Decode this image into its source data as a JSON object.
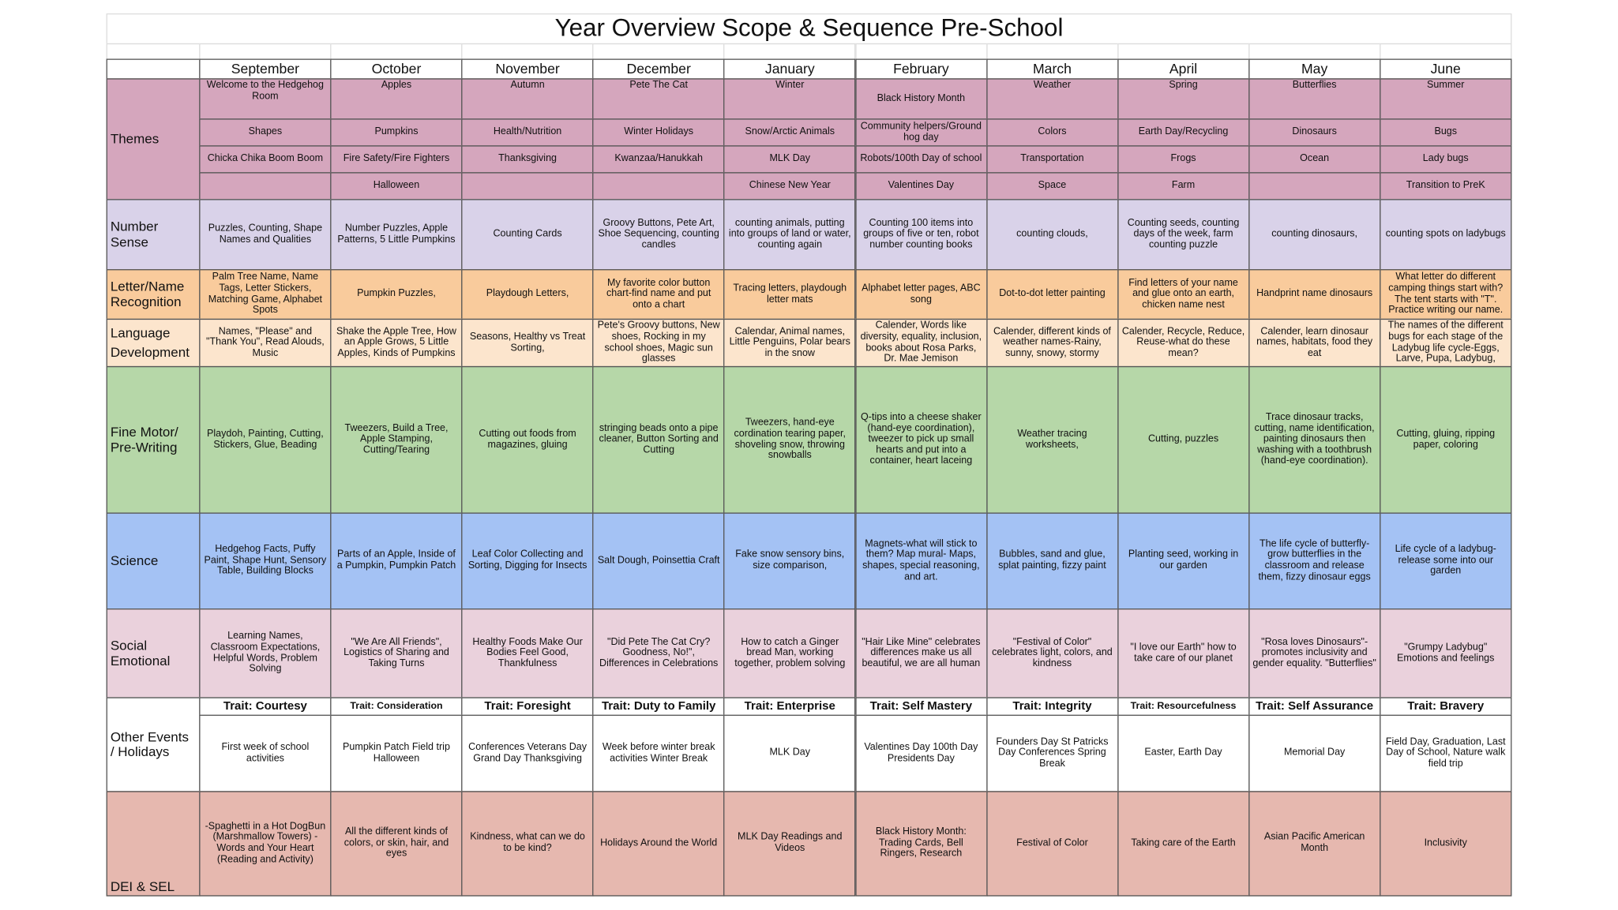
{
  "title": "Year Overview Scope & Sequence Pre-School",
  "months": [
    "September",
    "October",
    "November",
    "December",
    "January",
    "February",
    "March",
    "April",
    "May",
    "June"
  ],
  "themes": {
    "label": "Themes",
    "color": "#d5a6bd",
    "subrows": [
      [
        "Welcome to the Hedgehog Room",
        "Apples",
        "Autumn",
        "Pete The Cat",
        "Winter",
        "Black History Month",
        "Weather",
        "Spring",
        "Butterflies",
        "Summer"
      ],
      [
        "Shapes",
        "Pumpkins",
        "Health/Nutrition",
        "Winter Holidays",
        "Snow/Arctic Animals",
        "Community helpers/Ground hog day",
        "Colors",
        "Earth Day/Recycling",
        "Dinosaurs",
        "Bugs"
      ],
      [
        "Chicka Chika Boom Boom",
        "Fire Safety/Fire Fighters",
        "Thanksgiving",
        "Kwanzaa/Hanukkah",
        "MLK Day",
        "Robots/100th Day of school",
        "Transportation",
        "Frogs",
        "Ocean",
        "Lady bugs"
      ],
      [
        null,
        "Halloween",
        null,
        null,
        "Chinese New Year",
        "Valentines Day",
        "Space",
        "Farm",
        null,
        "Transition to PreK"
      ]
    ]
  },
  "rows": [
    {
      "label": "Number Sense",
      "color": "#d9d2e9",
      "cells": [
        "Puzzles, Counting, Shape Names and Qualities",
        "Number Puzzles, Apple Patterns, 5 Little Pumpkins",
        "Counting Cards",
        "Groovy Buttons, Pete Art, Shoe Sequencing, counting candles",
        "counting animals, putting into groups of land or water, counting again",
        "Counting 100 items into groups of five or ten, robot number counting books",
        "counting clouds,",
        "Counting seeds, counting days of the week, farm counting puzzle",
        "counting dinosaurs,",
        "counting spots on ladybugs"
      ]
    },
    {
      "label": "Letter/Name Recognition",
      "color": "#f9cb9c",
      "cells": [
        "Palm Tree Name, Name Tags, Letter Stickers, Matching Game, Alphabet Spots",
        "Pumpkin Puzzles,",
        "Playdough Letters,",
        "My favorite color button chart-find name and put onto a chart",
        "Tracing letters, playdough letter mats",
        "Alphabet letter pages, ABC song",
        "Dot-to-dot letter painting",
        "Find letters of your name and glue onto an earth, chicken name nest",
        "Handprint name dinosaurs",
        "What letter do different camping things start with? The tent starts with \"T\". Practice writing our name."
      ]
    },
    {
      "label": "Language Development",
      "color": "#fce5cd",
      "cells": [
        "Names, \"Please\" and \"Thank You\", Read Alouds, Music",
        "Shake the Apple Tree, How an Apple Grows, 5 Little Apples, Kinds of Pumpkins",
        "Seasons, Healthy vs Treat Sorting,",
        "Pete's Groovy buttons, New shoes, Rocking in my school shoes, Magic sun glasses",
        "Calendar, Animal names, Little Penguins, Polar bears in the snow",
        "Calender, Words like diversity, equality, inclusion, books about Rosa Parks, Dr. Mae Jemison",
        "Calender, different kinds of weather names-Rainy, sunny, snowy, stormy",
        "Calender,  Recycle,  Reduce, Reuse-what do these mean?",
        "Calender, learn dinosaur names, habitats, food they eat",
        "The names of the different bugs for each stage of the Ladybug life cycle-Eggs, Larve, Pupa, Ladybug,"
      ]
    },
    {
      "label": "Fine Motor/ Pre-Writing",
      "color": "#b6d7a8",
      "cells": [
        "Playdoh, Painting, Cutting, Stickers, Glue, Beading",
        "Tweezers, Build a Tree, Apple Stamping, Cutting/Tearing",
        "Cutting out foods from magazines, gluing",
        "stringing beads onto a pipe cleaner, Button Sorting and Cutting",
        "Tweezers, hand-eye cordination tearing paper, shoveling snow, throwing snowballs",
        "Q-tips into a cheese shaker (hand-eye coordination), tweezer to pick up small hearts and put into a container, heart laceing",
        "Weather tracing worksheets,",
        "Cutting, puzzles",
        "Trace dinosaur tracks, cutting, name identification, painting dinosaurs then washing with a toothbrush (hand-eye coordination).",
        "Cutting, gluing, ripping paper, coloring"
      ]
    },
    {
      "label": "Science",
      "color": "#a4c2f4",
      "cells": [
        "Hedgehog Facts, Puffy Paint, Shape Hunt, Sensory Table, Building Blocks",
        "Parts of an Apple, Inside of a Pumpkin, Pumpkin Patch",
        "Leaf Color Collecting and Sorting, Digging for Insects",
        "Salt Dough, Poinsettia Craft",
        "Fake snow sensory bins, size comparison,",
        "Magnets-what will stick to them? Map mural- Maps, shapes, special reasoning, and art.",
        "Bubbles, sand and glue, splat painting, fizzy paint",
        "Planting seed, working in our garden",
        "The life cycle of butterfly- grow butterflies in the classroom and release them, fizzy dinosaur eggs",
        "Life cycle of a ladybug- release some into our garden"
      ]
    },
    {
      "label": "Social Emotional",
      "color": "#ead1dc",
      "cells": [
        "Learning Names, Classroom Expectations, Helpful Words, Problem Solving",
        "\"We Are All Friends\", Logistics of Sharing and Taking Turns",
        "Healthy Foods Make Our Bodies Feel Good, Thankfulness",
        "\"Did Pete The Cat Cry? Goodness, No!\", Differences in Celebrations",
        "How to catch a Ginger bread Man, working together, problem solving",
        "\"Hair Like Mine\" celebrates differences make us all beautiful, we are all human",
        "\"Festival of Color\" celebrates light, colors, and kindness",
        "\"I love our Earth\" how to take care of our planet",
        "\"Rosa loves Dinosaurs\"- promotes inclusivity and gender equality. \"Butterflies\"",
        "\"Grumpy Ladybug\" Emotions and feelings"
      ]
    }
  ],
  "events": {
    "label": "Other Events / Holidays",
    "color": "#ffffff",
    "traits": [
      "Trait: Courtesy",
      "Trait: Consideration",
      "Trait: Foresight",
      "Trait: Duty to Family",
      "Trait: Enterprise",
      "Trait: Self Mastery",
      "Trait:  Integrity",
      "Trait:  Resourcefulness",
      "Trait: Self Assurance",
      "Trait: Bravery"
    ],
    "cells": [
      "First week of school activities",
      "Pumpkin Patch Field trip Halloween",
      "Conferences Veterans Day Grand Day Thanksgiving",
      "Week before winter break activities Winter Break",
      "MLK Day",
      "Valentines Day 100th Day Presidents Day",
      "Founders Day St Patricks Day Conferences Spring Break",
      "Easter, Earth Day",
      "Memorial Day",
      "Field Day, Graduation, Last Day of School, Nature walk field trip"
    ]
  },
  "dei": {
    "label": "DEI & SEL",
    "color": "#e6b8af",
    "cells": [
      "-Spaghetti in a Hot DogBun (Marshmallow Towers) -Words and Your Heart (Reading and Activity)",
      "All the different kinds of colors, or skin, hair, and eyes",
      "Kindness, what can we do to be kind?",
      "Holidays Around the World",
      "MLK Day Readings and Videos",
      "Black History Month: Trading Cards, Bell Ringers, Research",
      "Festival of Color",
      "Taking care of the Earth",
      "Asian Pacific American Month",
      "Inclusivity"
    ]
  }
}
